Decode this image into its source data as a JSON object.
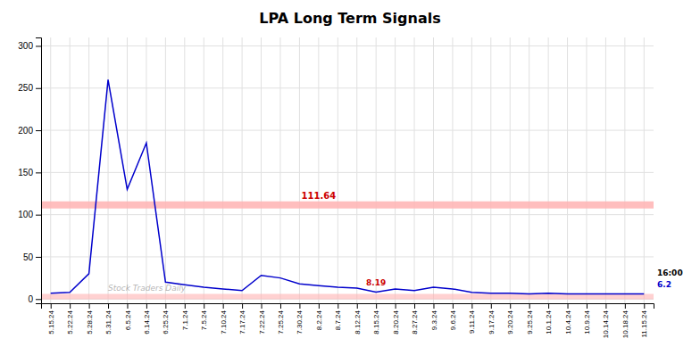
{
  "chart_data": {
    "type": "line",
    "title": "LPA Long Term Signals",
    "categories": [
      "5.15.24",
      "5.22.24",
      "5.28.24",
      "5.31.24",
      "6.5.24",
      "6.14.24",
      "6.25.24",
      "7.1.24",
      "7.5.24",
      "7.10.24",
      "7.17.24",
      "7.22.24",
      "7.25.24",
      "7.30.24",
      "8.2.24",
      "8.7.24",
      "8.12.24",
      "8.15.24",
      "8.20.24",
      "8.27.24",
      "9.3.24",
      "9.6.24",
      "9.11.24",
      "9.17.24",
      "9.20.24",
      "9.25.24",
      "10.1.24",
      "10.4.24",
      "10.9.24",
      "10.14.24",
      "10.18.24",
      "11.15.24"
    ],
    "values": [
      7,
      8,
      30,
      260,
      130,
      185,
      20,
      17,
      14,
      12,
      10,
      28,
      25,
      18,
      16,
      14,
      13,
      8.19,
      12,
      10,
      14,
      12,
      8,
      7,
      7,
      6,
      7,
      6,
      6,
      6,
      6,
      6.2
    ],
    "color": "#0000cc",
    "ylim": [
      -5,
      310
    ],
    "yticks": [
      0,
      50,
      100,
      150,
      200,
      250,
      300
    ],
    "grid": true,
    "reference_lines": [
      {
        "value": 111.64,
        "label": "111.64",
        "color": "#ffb3b3",
        "label_color": "#cc0000"
      },
      {
        "value": 3,
        "color": "#ffb3b3"
      }
    ],
    "annotations": [
      {
        "text": "8.19",
        "category": "8.15.24",
        "value": 8.19,
        "color": "#cc0000"
      },
      {
        "text": "16:00",
        "category": "11.15.24",
        "color": "#000000"
      },
      {
        "text": "6.2",
        "category": "11.15.24",
        "value": 6.2,
        "color": "#0000cc"
      }
    ],
    "watermark": "Stock Traders Daily"
  }
}
